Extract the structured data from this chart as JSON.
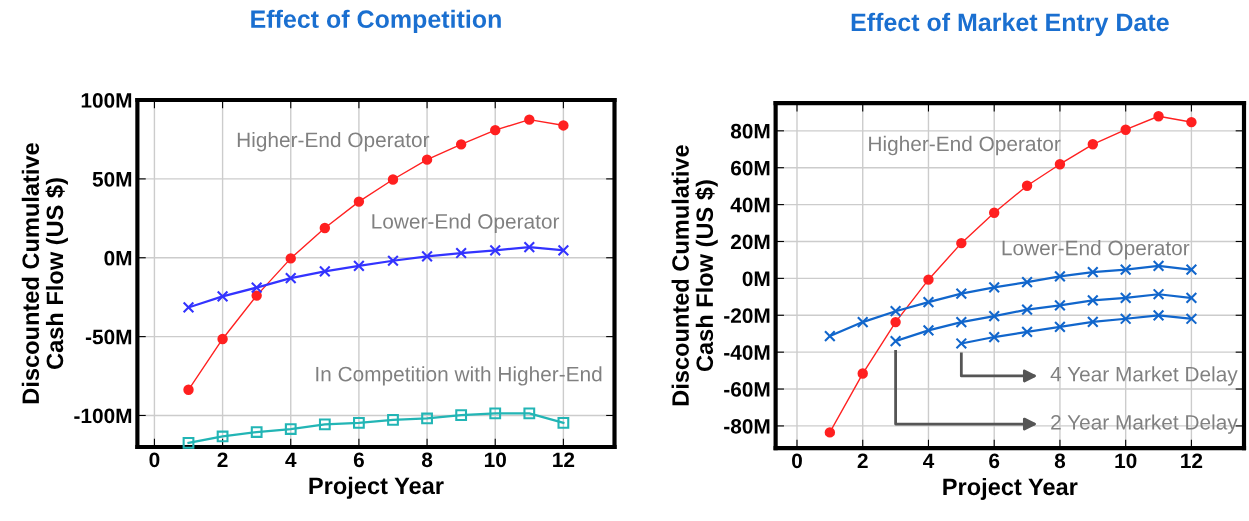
{
  "chart_data": [
    {
      "type": "line",
      "title": "Effect of Competition",
      "xlabel": "Project Year",
      "ylabel": "Discounted Cumulative\nCash Flow (US $)",
      "xlim": [
        -0.5,
        13.5
      ],
      "ylim": [
        -120,
        100
      ],
      "xticks": [
        0,
        2,
        4,
        6,
        8,
        10,
        12
      ],
      "yticks": [
        {
          "value": -100,
          "label": "-100M"
        },
        {
          "value": -50,
          "label": "-50M"
        },
        {
          "value": 0,
          "label": "0M"
        },
        {
          "value": 50,
          "label": "50M"
        },
        {
          "value": 100,
          "label": "100M"
        }
      ],
      "grid": true,
      "line_style": "solid",
      "series": [
        {
          "color": "#ff2020",
          "marker": "circle",
          "x": [
            1,
            2,
            3,
            4,
            5,
            6,
            7,
            8,
            9,
            10,
            11,
            12
          ],
          "values": [
            -83.7,
            -51.5,
            -24,
            -0.4,
            18.9,
            35.6,
            49.6,
            62.2,
            71.9,
            80.9,
            87.6,
            83.9
          ]
        },
        {
          "color": "#3333ff",
          "marker": "cross",
          "x": [
            1,
            2,
            3,
            4,
            5,
            6,
            7,
            8,
            9,
            10,
            11,
            12
          ],
          "values": [
            -31.5,
            -24.5,
            -18.9,
            -12.9,
            -8.6,
            -5.2,
            -1.9,
            0.9,
            3,
            4.7,
            6.7,
            4.7
          ]
        },
        {
          "color": "#22b5b5",
          "marker": "square",
          "x": [
            1,
            2,
            3,
            4,
            5,
            6,
            7,
            8,
            9,
            10,
            11,
            12
          ],
          "values": [
            -117.4,
            -113.3,
            -110.5,
            -108.6,
            -105.6,
            -104.7,
            -102.8,
            -101.9,
            -99.8,
            -98.7,
            -98.7,
            -104.7
          ]
        }
      ],
      "annotations": [
        "Higher-End Operator",
        "Lower-End Operator",
        "In Competition with Higher-End"
      ]
    },
    {
      "type": "line",
      "title": "Effect of Market Entry Date",
      "xlabel": "Project Year",
      "ylabel": "Discounted Cumulative\nCash Flow (US $)",
      "xlim": [
        -0.65,
        13.6
      ],
      "ylim": [
        -92,
        95
      ],
      "xticks": [
        0,
        2,
        4,
        6,
        8,
        10,
        12
      ],
      "yticks": [
        {
          "value": -80,
          "label": "-80M"
        },
        {
          "value": -60,
          "label": "-60M"
        },
        {
          "value": -40,
          "label": "-40M"
        },
        {
          "value": -20,
          "label": "-20M"
        },
        {
          "value": 0,
          "label": "0M"
        },
        {
          "value": 20,
          "label": "20M"
        },
        {
          "value": 40,
          "label": "40M"
        },
        {
          "value": 60,
          "label": "60M"
        },
        {
          "value": 80,
          "label": "80M"
        }
      ],
      "grid": true,
      "line_style": "solid",
      "series": [
        {
          "color": "#ff2020",
          "marker": "circle",
          "x": [
            1,
            2,
            3,
            4,
            5,
            6,
            7,
            8,
            9,
            10,
            11,
            12
          ],
          "values": [
            -83.5,
            -51.6,
            -23.7,
            -0.7,
            19.1,
            35.6,
            50.2,
            61.9,
            72.7,
            80.6,
            87.9,
            84.7
          ]
        },
        {
          "color": "#1166cc",
          "marker": "cross",
          "x": [
            1,
            2,
            3,
            4,
            5,
            6,
            7,
            8,
            9,
            10,
            11,
            12
          ],
          "values": [
            -31.3,
            -23.7,
            -17.8,
            -12.9,
            -8.3,
            -4.9,
            -2,
            1.1,
            3.4,
            4.7,
            6.8,
            4.7
          ]
        },
        {
          "color": "#1166cc",
          "marker": "cross",
          "x": [
            3,
            4,
            5,
            6,
            7,
            8,
            9,
            10,
            11,
            12
          ],
          "values": [
            -34,
            -28.2,
            -23.7,
            -20.5,
            -16.9,
            -14.6,
            -11.9,
            -10.6,
            -8.6,
            -10.6
          ]
        },
        {
          "color": "#1166cc",
          "marker": "cross",
          "x": [
            5,
            6,
            7,
            8,
            9,
            10,
            11,
            12
          ],
          "values": [
            -35.3,
            -31.8,
            -29,
            -26.3,
            -23.6,
            -21.9,
            -20.1,
            -21.9
          ]
        }
      ],
      "annotations": [
        "Higher-End Operator",
        "Lower-End Operator",
        "4 Year Market Delay",
        "2 Year Market Delay"
      ]
    }
  ]
}
